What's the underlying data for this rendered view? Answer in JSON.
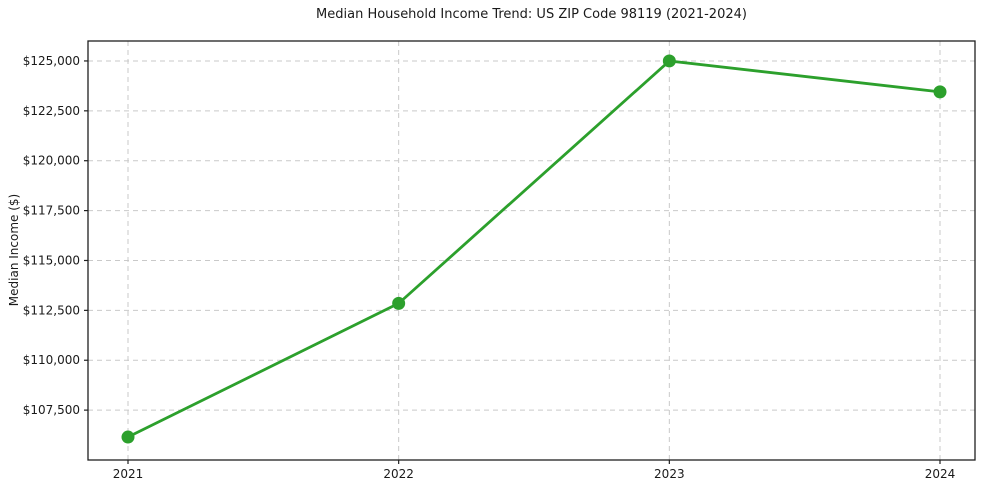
{
  "figure": {
    "background_color": "#ffffff"
  },
  "chart_data": {
    "type": "line",
    "title": "Median Household Income Trend: US ZIP Code 98119 (2021-2024)",
    "xlabel": "",
    "ylabel": "Median Income ($)",
    "categories": [
      "2021",
      "2022",
      "2023",
      "2024"
    ],
    "values": [
      106150,
      112850,
      125000,
      123450
    ],
    "ylim": [
      105000,
      126000
    ],
    "yticks": [
      107500,
      110000,
      112500,
      115000,
      117500,
      120000,
      122500,
      125000
    ],
    "ytick_labels": [
      "$107,500",
      "$110,000",
      "$112,500",
      "$115,000",
      "$117,500",
      "$120,000",
      "$122,500",
      "$125,000"
    ],
    "grid": "dashed, both axes",
    "legend_position": "none",
    "line_color": "#2ca02c",
    "marker": "filled circle",
    "grid_color": "#c9c9c9",
    "axis_color": "#1f1f1f",
    "tick_label_color": "#1a1a1a"
  }
}
